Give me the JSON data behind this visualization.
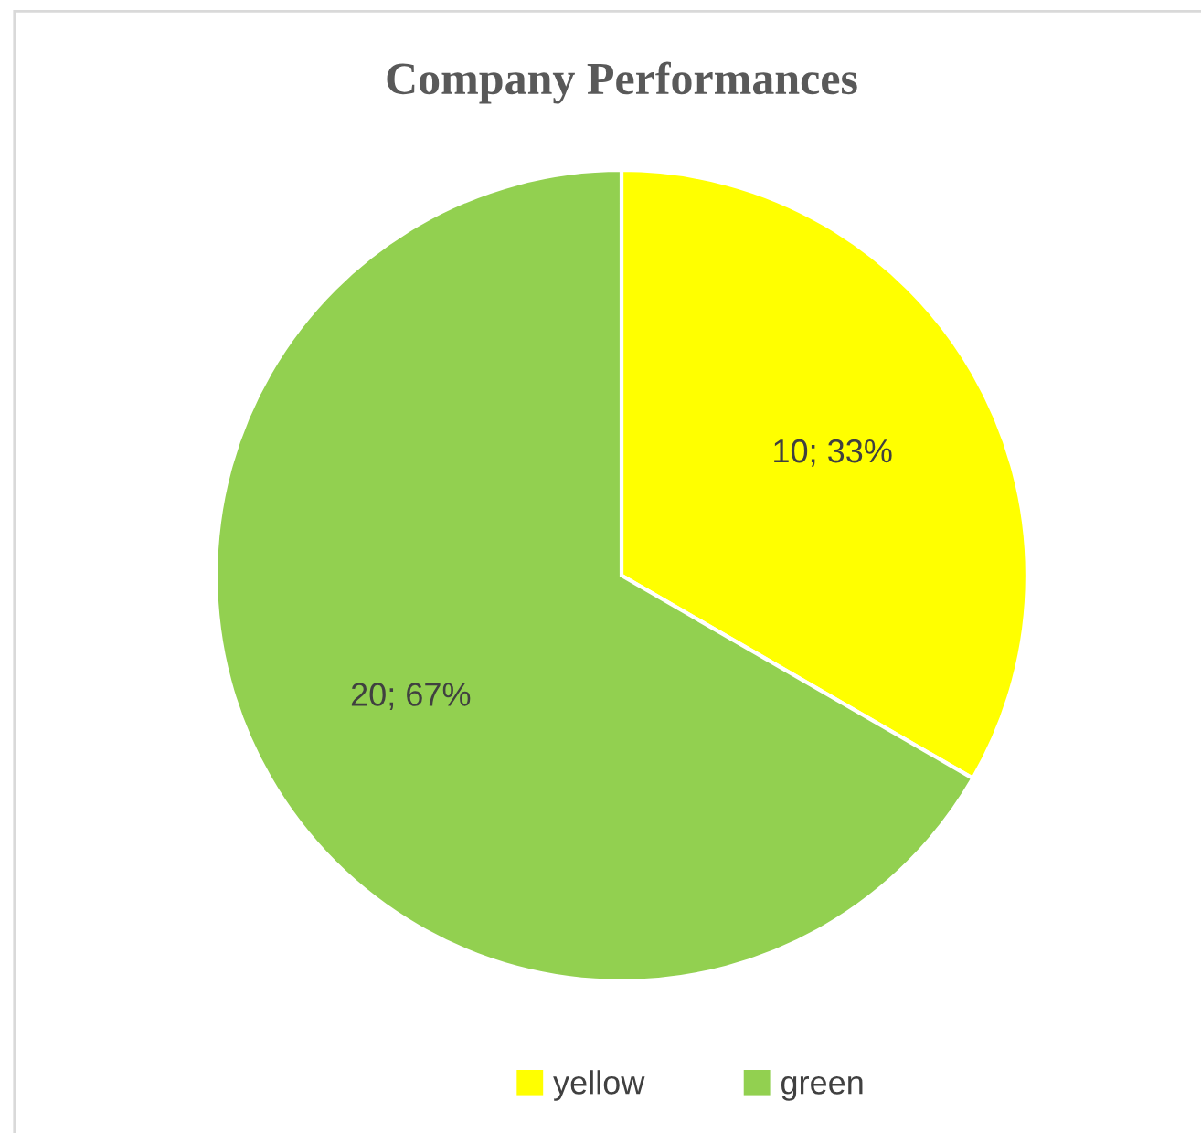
{
  "chart_data": {
    "type": "pie",
    "title": "Company Performances",
    "categories": [
      "yellow",
      "green"
    ],
    "values": [
      10,
      20
    ],
    "colors": [
      "#ffff00",
      "#92d050"
    ],
    "value_labels": [
      "10; 33%",
      "20; 67%"
    ],
    "legend": "bottom"
  }
}
